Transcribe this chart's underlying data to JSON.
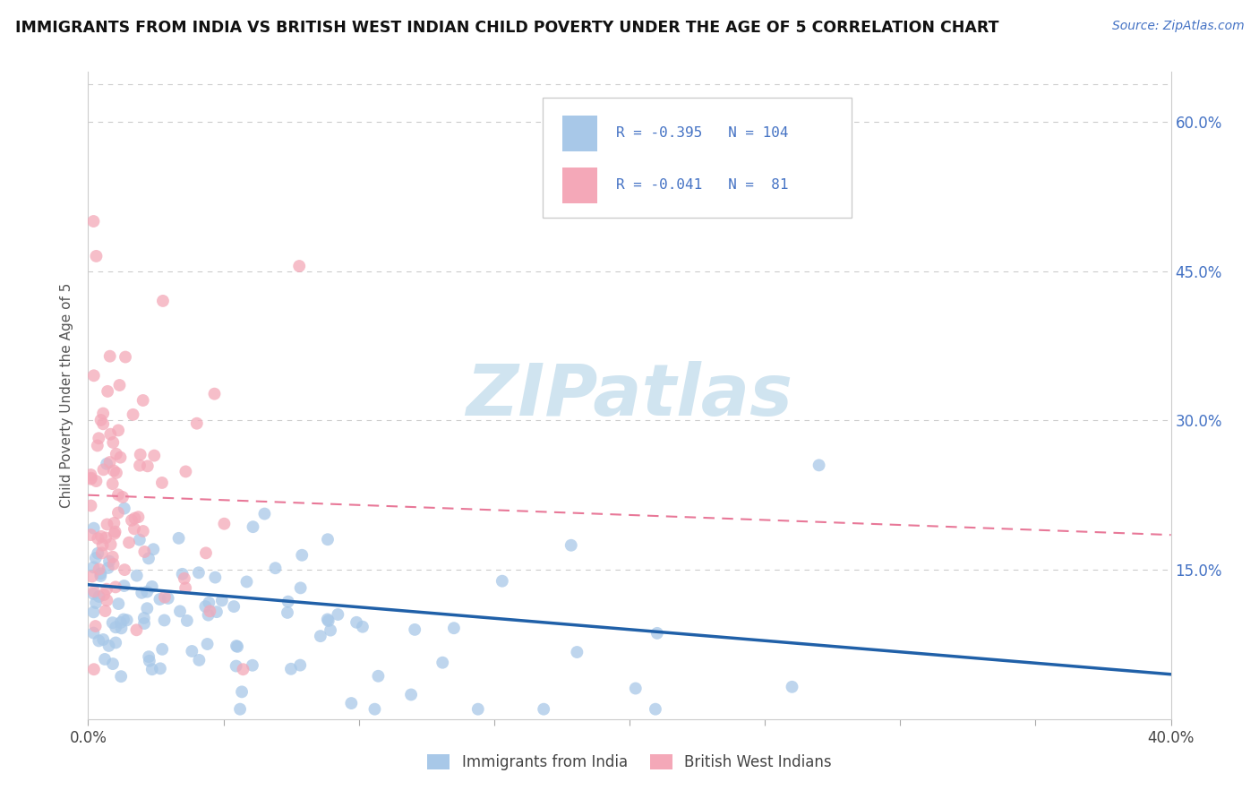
{
  "title": "IMMIGRANTS FROM INDIA VS BRITISH WEST INDIAN CHILD POVERTY UNDER THE AGE OF 5 CORRELATION CHART",
  "source": "Source: ZipAtlas.com",
  "ylabel": "Child Poverty Under the Age of 5",
  "xlim": [
    0.0,
    0.4
  ],
  "ylim": [
    0.0,
    0.65
  ],
  "blue_R": -0.395,
  "blue_N": 104,
  "pink_R": -0.041,
  "pink_N": 81,
  "blue_color": "#a8c8e8",
  "pink_color": "#f4a8b8",
  "blue_line_color": "#2060a8",
  "pink_line_color": "#e87898",
  "legend_label_blue": "Immigrants from India",
  "legend_label_pink": "British West Indians",
  "watermark": "ZIPatlas",
  "watermark_color": "#d0e4f0",
  "background_color": "#ffffff",
  "grid_color": "#cccccc",
  "blue_trend_x0": 0.0,
  "blue_trend_y0": 0.135,
  "blue_trend_x1": 0.4,
  "blue_trend_y1": 0.045,
  "pink_trend_x0": 0.0,
  "pink_trend_y0": 0.225,
  "pink_trend_x1": 0.4,
  "pink_trend_y1": 0.185
}
